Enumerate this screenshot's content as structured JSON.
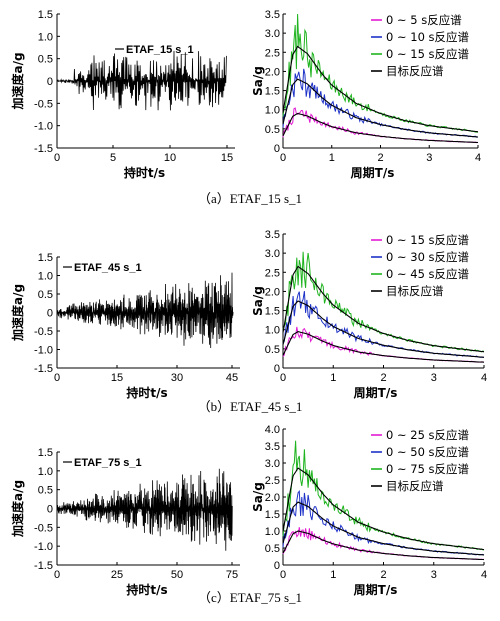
{
  "chart_data": [
    {
      "panel": "(a)",
      "caption": "（a）ETAF_15 s_1",
      "time_history": {
        "type": "line",
        "legend": "ETAF_15 s_1",
        "xlabel": "持时t/s",
        "ylabel": "加速度a/g",
        "xlim": [
          0,
          15.5
        ],
        "ylim": [
          -1.5,
          1.5
        ],
        "xticks": [
          "0",
          "5",
          "10",
          "15"
        ],
        "yticks": [
          "-1.5",
          "-1.0",
          "-0.5",
          "0",
          "0.5",
          "1.0",
          "1.5"
        ],
        "duration": 15,
        "peak": 1.05,
        "envelope": "quick build-up at ~2 s, roughly stationary"
      },
      "spectrum": {
        "type": "line",
        "xlabel": "周期T/s",
        "ylabel": "Sa/g",
        "xlim": [
          0,
          4
        ],
        "ylim": [
          0,
          3.5
        ],
        "xticks": [
          "0",
          "1",
          "2",
          "3",
          "4"
        ],
        "yticks": [
          "0",
          "0.5",
          "1.0",
          "1.5",
          "2.0",
          "2.5",
          "3.0",
          "3.5"
        ],
        "series": [
          {
            "name": "0 ~ 5 s反应谱",
            "color": "#e21bd4"
          },
          {
            "name": "0 ~ 10 s反应谱",
            "color": "#1e32c8"
          },
          {
            "name": "0 ~ 15 s反应谱",
            "color": "#1fb41f"
          },
          {
            "name": "目标反应谱",
            "color": "#000000"
          }
        ],
        "target_peaks": [
          0.9,
          1.8,
          2.65
        ],
        "target_T": [
          0.0,
          0.2,
          0.3,
          0.5,
          0.8,
          1.0,
          1.5,
          2.0,
          2.5,
          3.0,
          3.5,
          4.0
        ],
        "target_shape": [
          0.35,
          0.92,
          1.0,
          0.93,
          0.73,
          0.62,
          0.44,
          0.34,
          0.27,
          0.22,
          0.19,
          0.16
        ]
      }
    },
    {
      "panel": "(b)",
      "caption": "（b）ETAF_45 s_1",
      "time_history": {
        "type": "line",
        "legend": "ETAF_45 s_1",
        "xlabel": "持时t/s",
        "ylabel": "加速度a/g",
        "xlim": [
          0,
          46
        ],
        "ylim": [
          -1.5,
          1.5
        ],
        "xticks": [
          "0",
          "15",
          "30",
          "45"
        ],
        "yticks": [
          "-1.5",
          "-1.0",
          "-0.5",
          "0",
          "0.5",
          "1.0",
          "1.5"
        ],
        "duration": 45,
        "peak": 1.25,
        "envelope": "amplitude grows linearly with time"
      },
      "spectrum": {
        "type": "line",
        "xlabel": "周期T/s",
        "ylabel": "Sa/g",
        "xlim": [
          0,
          4
        ],
        "ylim": [
          0,
          3.5
        ],
        "xticks": [
          "0",
          "1",
          "2",
          "3",
          "4"
        ],
        "yticks": [
          "0",
          "0.5",
          "1.0",
          "1.5",
          "2.0",
          "2.5",
          "3.0",
          "3.5"
        ],
        "series": [
          {
            "name": "0 ~ 15 s反应谱",
            "color": "#e21bd4"
          },
          {
            "name": "0 ~ 30 s反应谱",
            "color": "#1e32c8"
          },
          {
            "name": "0 ~ 45 s反应谱",
            "color": "#1fb41f"
          },
          {
            "name": "目标反应谱",
            "color": "#000000"
          }
        ],
        "target_peaks": [
          0.95,
          1.75,
          2.65
        ],
        "target_T": [
          0.0,
          0.2,
          0.3,
          0.5,
          0.8,
          1.0,
          1.5,
          2.0,
          2.5,
          3.0,
          3.5,
          4.0
        ],
        "target_shape": [
          0.35,
          0.92,
          1.0,
          0.93,
          0.73,
          0.62,
          0.44,
          0.34,
          0.27,
          0.22,
          0.19,
          0.16
        ]
      }
    },
    {
      "panel": "(c)",
      "caption": "（c）ETAF_75 s_1",
      "time_history": {
        "type": "line",
        "legend": "ETAF_75 s_1",
        "xlabel": "持时t/s",
        "ylabel": "加速度a/g",
        "xlim": [
          0,
          77
        ],
        "ylim": [
          -1.5,
          1.5
        ],
        "xticks": [
          "0",
          "25",
          "50",
          "75"
        ],
        "yticks": [
          "-1.5",
          "-1.0",
          "-0.5",
          "0",
          "0.5",
          "1.0",
          "1.5"
        ],
        "duration": 75,
        "peak": 1.3,
        "envelope": "amplitude grows linearly with time"
      },
      "spectrum": {
        "type": "line",
        "xlabel": "周期T/s",
        "ylabel": "Sa/g",
        "xlim": [
          0,
          4
        ],
        "ylim": [
          0,
          4.0
        ],
        "xticks": [
          "0",
          "1",
          "2",
          "3",
          "4"
        ],
        "yticks": [
          "0",
          "0.5",
          "1.0",
          "1.5",
          "2.0",
          "2.5",
          "3.0",
          "3.5",
          "4.0"
        ],
        "series": [
          {
            "name": "0 ~ 25 s反应谱",
            "color": "#e21bd4"
          },
          {
            "name": "0 ~ 50 s反应谱",
            "color": "#1e32c8"
          },
          {
            "name": "0 ~ 75 s反应谱",
            "color": "#1fb41f"
          },
          {
            "name": "目标反应谱",
            "color": "#000000"
          }
        ],
        "target_peaks": [
          1.0,
          1.85,
          2.85
        ],
        "target_T": [
          0.0,
          0.2,
          0.3,
          0.5,
          0.8,
          1.0,
          1.5,
          2.0,
          2.5,
          3.0,
          3.5,
          4.0
        ],
        "target_shape": [
          0.35,
          0.92,
          1.0,
          0.93,
          0.73,
          0.62,
          0.44,
          0.34,
          0.27,
          0.22,
          0.19,
          0.16
        ]
      }
    }
  ]
}
